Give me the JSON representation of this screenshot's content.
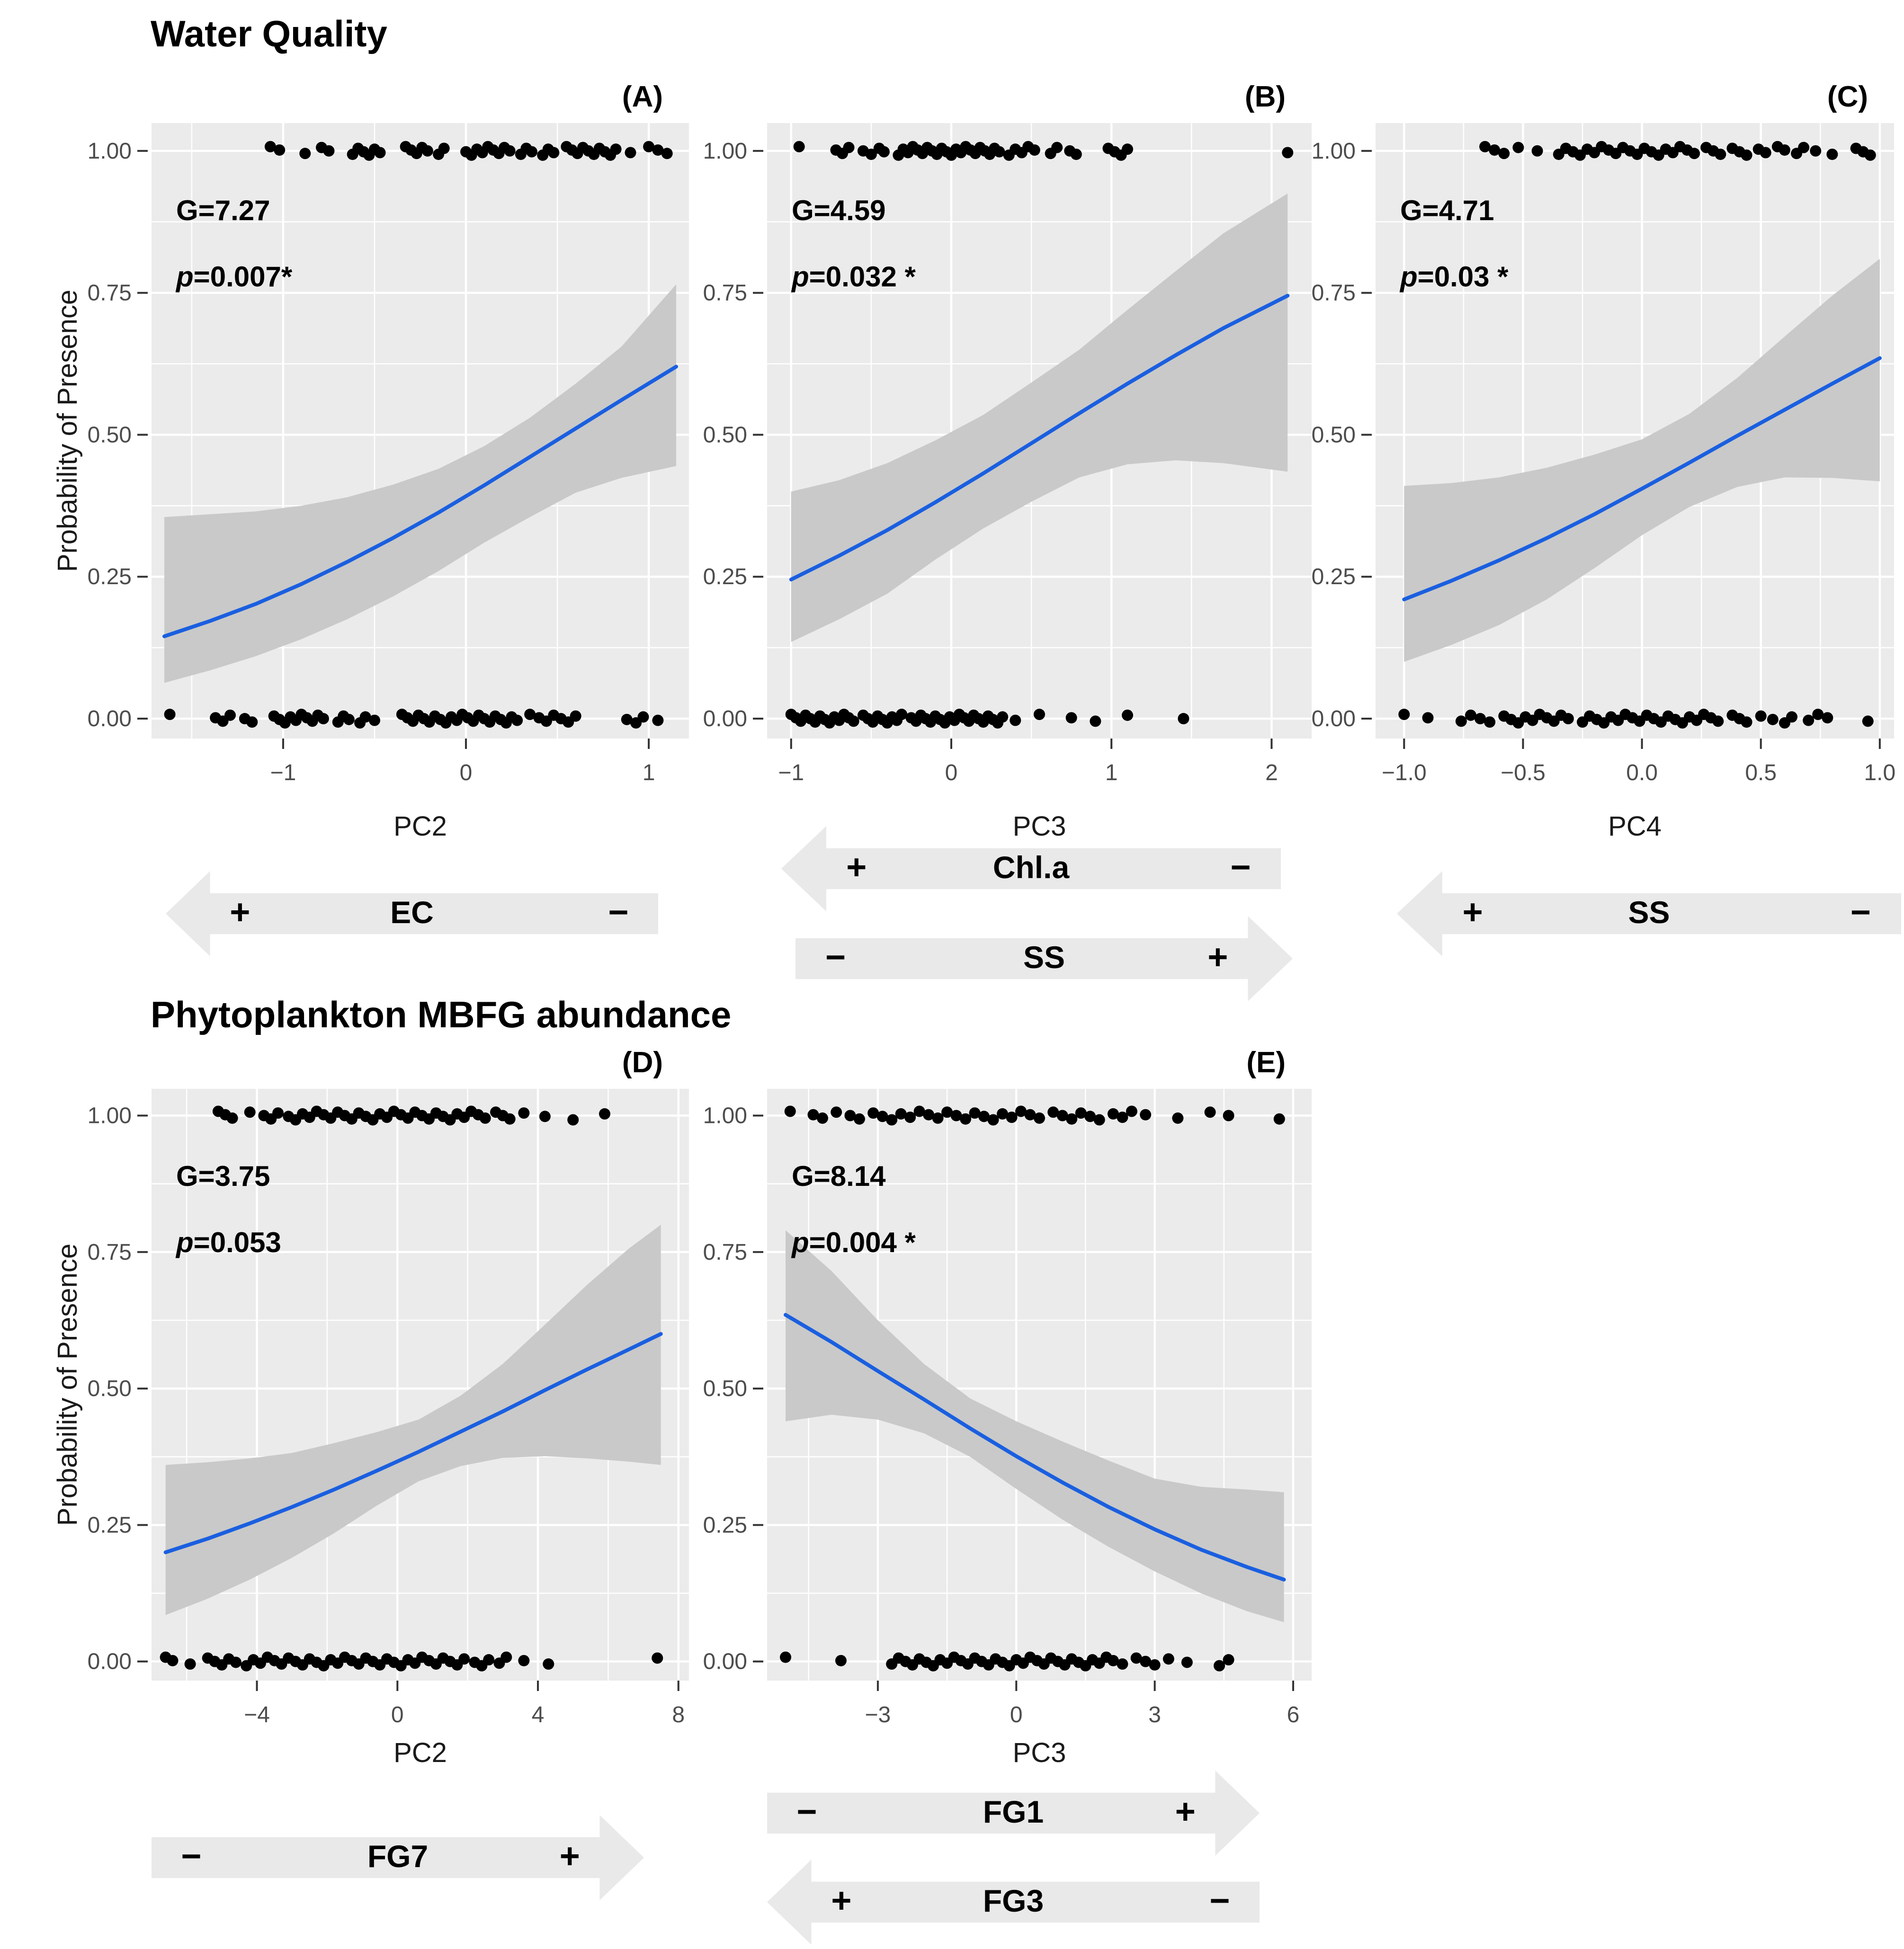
{
  "sections": [
    {
      "title": "Water Quality"
    },
    {
      "title": "Phytoplankton MBFG abundance"
    }
  ],
  "y_axis_title": "Probability of Presence",
  "colors": {
    "plot_background": "#ebebeb",
    "gridline": "#ffffff",
    "confidence_band": "#c9c9c9",
    "curve": "#1a5fe0",
    "point": "#000000",
    "tick_text": "#4d4d4d",
    "axis_title_text": "#1a1a1a",
    "arrow_fill": "#e9e9e9",
    "text": "#000000"
  },
  "chart_data": [
    {
      "id": "A",
      "type": "line",
      "panel_label": "(A)",
      "stats_g": "G=7.27",
      "p_prefix": "p",
      "p_value": "=0.007*",
      "x_label": "PC2",
      "has_y_title": true,
      "x_range": [
        -1.72,
        1.22
      ],
      "y_range": [
        -0.035,
        1.049
      ],
      "x_ticks": [
        {
          "v": -1,
          "t": "−1"
        },
        {
          "v": 0,
          "t": "0"
        },
        {
          "v": 1,
          "t": "1"
        }
      ],
      "x_minor": [
        -1.5,
        -0.5,
        0.5
      ],
      "y_ticks": [
        {
          "v": 0,
          "t": "0.00"
        },
        {
          "v": 0.25,
          "t": "0.25"
        },
        {
          "v": 0.5,
          "t": "0.50"
        },
        {
          "v": 0.75,
          "t": "0.75"
        },
        {
          "v": 1,
          "t": "1.00"
        }
      ],
      "y_minor": [
        0.125,
        0.375,
        0.625,
        0.875
      ],
      "curve_x": [
        -1.65,
        -1.4,
        -1.15,
        -0.9,
        -0.65,
        -0.4,
        -0.15,
        0.1,
        0.35,
        0.6,
        0.85,
        1.15
      ],
      "curve_y": [
        0.145,
        0.172,
        0.202,
        0.237,
        0.276,
        0.318,
        0.363,
        0.411,
        0.461,
        0.511,
        0.561,
        0.62
      ],
      "band_lo": [
        0.063,
        0.085,
        0.11,
        0.14,
        0.175,
        0.215,
        0.26,
        0.31,
        0.355,
        0.398,
        0.424,
        0.445
      ],
      "band_hi": [
        0.355,
        0.36,
        0.365,
        0.375,
        0.39,
        0.412,
        0.44,
        0.48,
        0.53,
        0.59,
        0.655,
        0.765
      ],
      "points_presence": [
        -1.07,
        -1.02,
        -0.88,
        -0.79,
        -0.75,
        -0.62,
        -0.59,
        -0.56,
        -0.53,
        -0.5,
        -0.47,
        -0.33,
        -0.3,
        -0.27,
        -0.24,
        -0.21,
        -0.15,
        -0.12,
        0.0,
        0.03,
        0.06,
        0.09,
        0.12,
        0.15,
        0.18,
        0.21,
        0.24,
        0.3,
        0.33,
        0.36,
        0.42,
        0.45,
        0.48,
        0.55,
        0.58,
        0.61,
        0.64,
        0.67,
        0.7,
        0.73,
        0.76,
        0.79,
        0.82,
        0.9,
        1.0,
        1.05,
        1.1
      ],
      "points_absence": [
        -1.62,
        -1.37,
        -1.33,
        -1.29,
        -1.21,
        -1.17,
        -1.05,
        -1.02,
        -0.99,
        -0.96,
        -0.93,
        -0.9,
        -0.87,
        -0.84,
        -0.81,
        -0.78,
        -0.7,
        -0.67,
        -0.64,
        -0.58,
        -0.55,
        -0.5,
        -0.35,
        -0.32,
        -0.29,
        -0.26,
        -0.23,
        -0.2,
        -0.17,
        -0.14,
        -0.11,
        -0.08,
        -0.05,
        -0.02,
        0.01,
        0.04,
        0.07,
        0.1,
        0.13,
        0.16,
        0.19,
        0.22,
        0.25,
        0.28,
        0.35,
        0.4,
        0.44,
        0.48,
        0.52,
        0.56,
        0.6,
        0.88,
        0.93,
        0.97,
        1.05
      ]
    },
    {
      "id": "B",
      "type": "line",
      "panel_label": "(B)",
      "stats_g": "G=4.59",
      "p_prefix": "p",
      "p_value": "=0.032 *",
      "x_label": "PC3",
      "has_y_title": false,
      "x_range": [
        -1.15,
        2.25
      ],
      "y_range": [
        -0.035,
        1.049
      ],
      "x_ticks": [
        {
          "v": -1,
          "t": "−1"
        },
        {
          "v": 0,
          "t": "0"
        },
        {
          "v": 1,
          "t": "1"
        },
        {
          "v": 2,
          "t": "2"
        }
      ],
      "x_minor": [
        -0.5,
        0.5,
        1.5
      ],
      "y_ticks": [
        {
          "v": 0,
          "t": "0.00"
        },
        {
          "v": 0.25,
          "t": "0.25"
        },
        {
          "v": 0.5,
          "t": "0.50"
        },
        {
          "v": 0.75,
          "t": "0.75"
        },
        {
          "v": 1,
          "t": "1.00"
        }
      ],
      "y_minor": [
        0.125,
        0.375,
        0.625,
        0.875
      ],
      "curve_x": [
        -1.0,
        -0.7,
        -0.4,
        -0.1,
        0.2,
        0.5,
        0.8,
        1.1,
        1.4,
        1.7,
        2.1
      ],
      "curve_y": [
        0.245,
        0.287,
        0.332,
        0.381,
        0.432,
        0.485,
        0.538,
        0.59,
        0.64,
        0.688,
        0.745
      ],
      "band_lo": [
        0.135,
        0.175,
        0.22,
        0.28,
        0.335,
        0.382,
        0.425,
        0.448,
        0.455,
        0.45,
        0.435
      ],
      "band_hi": [
        0.4,
        0.42,
        0.45,
        0.49,
        0.535,
        0.592,
        0.65,
        0.72,
        0.788,
        0.855,
        0.925
      ],
      "points_presence": [
        -0.95,
        -0.72,
        -0.68,
        -0.64,
        -0.55,
        -0.5,
        -0.45,
        -0.42,
        -0.33,
        -0.3,
        -0.27,
        -0.24,
        -0.21,
        -0.18,
        -0.15,
        -0.12,
        -0.09,
        -0.06,
        -0.03,
        0.0,
        0.03,
        0.06,
        0.09,
        0.12,
        0.15,
        0.18,
        0.21,
        0.24,
        0.27,
        0.3,
        0.36,
        0.4,
        0.44,
        0.48,
        0.52,
        0.62,
        0.66,
        0.74,
        0.78,
        0.98,
        1.02,
        1.06,
        1.1,
        2.1
      ],
      "points_absence": [
        -1.0,
        -0.97,
        -0.94,
        -0.91,
        -0.88,
        -0.85,
        -0.82,
        -0.79,
        -0.76,
        -0.73,
        -0.7,
        -0.67,
        -0.64,
        -0.61,
        -0.55,
        -0.52,
        -0.49,
        -0.46,
        -0.43,
        -0.4,
        -0.37,
        -0.34,
        -0.31,
        -0.25,
        -0.22,
        -0.19,
        -0.16,
        -0.13,
        -0.1,
        -0.07,
        -0.04,
        -0.01,
        0.02,
        0.05,
        0.08,
        0.11,
        0.14,
        0.17,
        0.2,
        0.23,
        0.26,
        0.29,
        0.32,
        0.4,
        0.55,
        0.75,
        0.9,
        1.1,
        1.45
      ]
    },
    {
      "id": "C",
      "type": "line",
      "panel_label": "(C)",
      "stats_g": "G=4.71",
      "p_prefix": "p",
      "p_value": "=0.03 *",
      "x_label": "PC4",
      "has_y_title": false,
      "x_range": [
        -1.12,
        1.06
      ],
      "y_range": [
        -0.035,
        1.049
      ],
      "x_ticks": [
        {
          "v": -1,
          "t": "−1.0"
        },
        {
          "v": -0.5,
          "t": "−0.5"
        },
        {
          "v": 0,
          "t": "0.0"
        },
        {
          "v": 0.5,
          "t": "0.5"
        },
        {
          "v": 1,
          "t": "1.0"
        }
      ],
      "x_minor": [
        -0.75,
        -0.25,
        0.25,
        0.75
      ],
      "y_ticks": [
        {
          "v": 0,
          "t": "0.00"
        },
        {
          "v": 0.25,
          "t": "0.25"
        },
        {
          "v": 0.5,
          "t": "0.50"
        },
        {
          "v": 0.75,
          "t": "0.75"
        },
        {
          "v": 1,
          "t": "1.00"
        }
      ],
      "y_minor": [
        0.125,
        0.375,
        0.625,
        0.875
      ],
      "curve_x": [
        -1.0,
        -0.8,
        -0.6,
        -0.4,
        -0.2,
        0.0,
        0.2,
        0.4,
        0.6,
        0.8,
        1.0
      ],
      "curve_y": [
        0.21,
        0.243,
        0.279,
        0.318,
        0.36,
        0.405,
        0.451,
        0.498,
        0.544,
        0.59,
        0.635
      ],
      "band_lo": [
        0.1,
        0.13,
        0.165,
        0.21,
        0.265,
        0.323,
        0.373,
        0.408,
        0.425,
        0.424,
        0.418
      ],
      "band_hi": [
        0.41,
        0.415,
        0.425,
        0.442,
        0.465,
        0.492,
        0.537,
        0.6,
        0.673,
        0.745,
        0.81
      ],
      "points_presence": [
        -0.66,
        -0.62,
        -0.58,
        -0.52,
        -0.44,
        -0.35,
        -0.32,
        -0.29,
        -0.26,
        -0.23,
        -0.2,
        -0.17,
        -0.14,
        -0.11,
        -0.08,
        -0.05,
        -0.02,
        0.01,
        0.04,
        0.07,
        0.1,
        0.13,
        0.16,
        0.19,
        0.22,
        0.27,
        0.3,
        0.33,
        0.38,
        0.41,
        0.44,
        0.49,
        0.52,
        0.57,
        0.6,
        0.65,
        0.68,
        0.73,
        0.8,
        0.9,
        0.93,
        0.96
      ],
      "points_absence": [
        -1.0,
        -0.9,
        -0.76,
        -0.72,
        -0.68,
        -0.64,
        -0.58,
        -0.55,
        -0.52,
        -0.49,
        -0.46,
        -0.43,
        -0.4,
        -0.37,
        -0.34,
        -0.31,
        -0.25,
        -0.22,
        -0.19,
        -0.16,
        -0.13,
        -0.1,
        -0.07,
        -0.04,
        -0.01,
        0.02,
        0.05,
        0.08,
        0.11,
        0.14,
        0.17,
        0.2,
        0.23,
        0.26,
        0.29,
        0.32,
        0.38,
        0.41,
        0.44,
        0.5,
        0.55,
        0.6,
        0.63,
        0.7,
        0.74,
        0.78,
        0.95
      ]
    },
    {
      "id": "D",
      "type": "line",
      "panel_label": "(D)",
      "stats_g": "G=3.75",
      "p_prefix": "p",
      "p_value": "=0.053",
      "x_label": "PC2",
      "has_y_title": true,
      "x_range": [
        -7.0,
        8.3
      ],
      "y_range": [
        -0.035,
        1.049
      ],
      "x_ticks": [
        {
          "v": -4,
          "t": "−4"
        },
        {
          "v": 0,
          "t": "0"
        },
        {
          "v": 4,
          "t": "4"
        },
        {
          "v": 8,
          "t": "8"
        }
      ],
      "x_minor": [
        -6,
        -2,
        2,
        6
      ],
      "y_ticks": [
        {
          "v": 0,
          "t": "0.00"
        },
        {
          "v": 0.25,
          "t": "0.25"
        },
        {
          "v": 0.5,
          "t": "0.50"
        },
        {
          "v": 0.75,
          "t": "0.75"
        },
        {
          "v": 1,
          "t": "1.00"
        }
      ],
      "y_minor": [
        0.125,
        0.375,
        0.625,
        0.875
      ],
      "curve_x": [
        -6.6,
        -5.4,
        -4.2,
        -3.0,
        -1.8,
        -0.6,
        0.6,
        1.8,
        3.0,
        4.2,
        5.4,
        6.6,
        7.5
      ],
      "curve_y": [
        0.2,
        0.225,
        0.253,
        0.283,
        0.315,
        0.349,
        0.384,
        0.421,
        0.458,
        0.497,
        0.535,
        0.572,
        0.6
      ],
      "band_lo": [
        0.085,
        0.115,
        0.15,
        0.19,
        0.235,
        0.285,
        0.33,
        0.358,
        0.373,
        0.376,
        0.372,
        0.366,
        0.36
      ],
      "band_hi": [
        0.36,
        0.365,
        0.372,
        0.382,
        0.4,
        0.42,
        0.443,
        0.487,
        0.545,
        0.617,
        0.69,
        0.757,
        0.8
      ],
      "points_presence": [
        -5.1,
        -4.9,
        -4.7,
        -4.2,
        -3.8,
        -3.6,
        -3.4,
        -3.1,
        -2.9,
        -2.7,
        -2.5,
        -2.3,
        -2.1,
        -1.9,
        -1.7,
        -1.5,
        -1.3,
        -1.1,
        -0.9,
        -0.7,
        -0.5,
        -0.3,
        -0.1,
        0.1,
        0.3,
        0.5,
        0.7,
        0.9,
        1.1,
        1.3,
        1.5,
        1.7,
        1.9,
        2.1,
        2.3,
        2.5,
        2.8,
        3.0,
        3.2,
        3.6,
        4.2,
        5.0,
        5.9
      ],
      "points_absence": [
        -6.6,
        -6.4,
        -5.9,
        -5.4,
        -5.2,
        -5.0,
        -4.8,
        -4.6,
        -4.3,
        -4.1,
        -3.9,
        -3.7,
        -3.5,
        -3.3,
        -3.1,
        -2.9,
        -2.7,
        -2.5,
        -2.3,
        -2.1,
        -1.9,
        -1.7,
        -1.5,
        -1.3,
        -1.1,
        -0.9,
        -0.7,
        -0.5,
        -0.3,
        -0.1,
        0.1,
        0.3,
        0.5,
        0.7,
        0.9,
        1.1,
        1.3,
        1.5,
        1.7,
        1.9,
        2.2,
        2.4,
        2.6,
        2.9,
        3.1,
        3.6,
        4.3,
        7.4
      ]
    },
    {
      "id": "E",
      "type": "line",
      "panel_label": "(E)",
      "stats_g": "G=8.14",
      "p_prefix": "p",
      "p_value": "=0.004 *",
      "x_label": "PC3",
      "has_y_title": false,
      "x_range": [
        -5.4,
        6.4
      ],
      "y_range": [
        -0.035,
        1.049
      ],
      "x_ticks": [
        {
          "v": -3,
          "t": "−3"
        },
        {
          "v": 0,
          "t": "0"
        },
        {
          "v": 3,
          "t": "3"
        },
        {
          "v": 6,
          "t": "6"
        }
      ],
      "x_minor": [
        -4.5,
        -1.5,
        1.5,
        4.5
      ],
      "y_ticks": [
        {
          "v": 0,
          "t": "0.00"
        },
        {
          "v": 0.25,
          "t": "0.25"
        },
        {
          "v": 0.5,
          "t": "0.50"
        },
        {
          "v": 0.75,
          "t": "0.75"
        },
        {
          "v": 1,
          "t": "1.00"
        }
      ],
      "y_minor": [
        0.125,
        0.375,
        0.625,
        0.875
      ],
      "curve_x": [
        -5.0,
        -4.0,
        -3.0,
        -2.0,
        -1.0,
        0.0,
        1.0,
        2.0,
        3.0,
        4.0,
        5.0,
        5.8
      ],
      "curve_y": [
        0.635,
        0.585,
        0.532,
        0.48,
        0.427,
        0.376,
        0.328,
        0.283,
        0.242,
        0.205,
        0.173,
        0.15
      ],
      "band_lo": [
        0.44,
        0.452,
        0.443,
        0.418,
        0.375,
        0.316,
        0.26,
        0.21,
        0.165,
        0.125,
        0.092,
        0.072
      ],
      "band_hi": [
        0.79,
        0.715,
        0.625,
        0.545,
        0.482,
        0.44,
        0.403,
        0.368,
        0.335,
        0.32,
        0.315,
        0.31
      ],
      "points_presence": [
        -4.9,
        -4.4,
        -4.2,
        -3.9,
        -3.6,
        -3.4,
        -3.1,
        -2.9,
        -2.7,
        -2.5,
        -2.3,
        -2.1,
        -1.9,
        -1.7,
        -1.5,
        -1.3,
        -1.1,
        -0.9,
        -0.7,
        -0.5,
        -0.3,
        -0.1,
        0.1,
        0.3,
        0.5,
        0.8,
        1.0,
        1.2,
        1.4,
        1.6,
        1.8,
        2.1,
        2.3,
        2.5,
        2.8,
        3.5,
        4.2,
        4.6,
        5.7
      ],
      "points_absence": [
        -5.0,
        -3.8,
        -2.7,
        -2.55,
        -2.4,
        -2.25,
        -2.1,
        -1.95,
        -1.8,
        -1.65,
        -1.5,
        -1.35,
        -1.2,
        -1.05,
        -0.9,
        -0.75,
        -0.6,
        -0.45,
        -0.3,
        -0.15,
        0.0,
        0.15,
        0.3,
        0.45,
        0.6,
        0.75,
        0.9,
        1.05,
        1.2,
        1.35,
        1.5,
        1.65,
        1.8,
        1.95,
        2.1,
        2.3,
        2.6,
        2.8,
        3.0,
        3.3,
        3.7,
        4.4,
        4.6
      ]
    }
  ],
  "arrows": [
    {
      "id": "ec",
      "panel": "A",
      "label": "EC",
      "direction": "left",
      "left_sign": "+",
      "right_sign": "−"
    },
    {
      "id": "chla",
      "panel": "B",
      "label": "Chl.a",
      "direction": "left",
      "left_sign": "+",
      "right_sign": "−"
    },
    {
      "id": "ss-b",
      "panel": "B",
      "label": "SS",
      "direction": "right",
      "left_sign": "−",
      "right_sign": "+"
    },
    {
      "id": "ss-c",
      "panel": "C",
      "label": "SS",
      "direction": "left",
      "left_sign": "+",
      "right_sign": "−"
    },
    {
      "id": "fg7",
      "panel": "D",
      "label": "FG7",
      "direction": "right",
      "left_sign": "−",
      "right_sign": "+"
    },
    {
      "id": "fg1",
      "panel": "E",
      "label": "FG1",
      "direction": "right",
      "left_sign": "−",
      "right_sign": "+"
    },
    {
      "id": "fg3",
      "panel": "E",
      "label": "FG3",
      "direction": "left",
      "left_sign": "+",
      "right_sign": "−"
    }
  ]
}
